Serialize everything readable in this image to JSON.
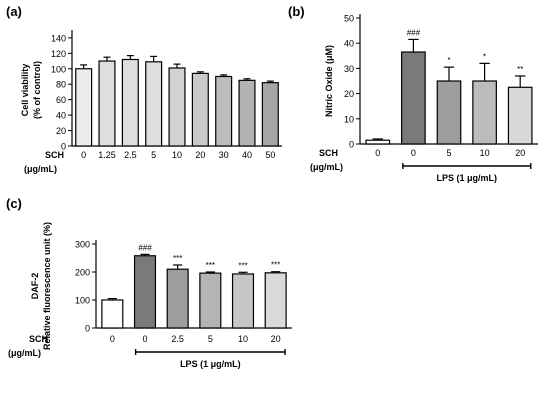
{
  "panel_labels": [
    "(a)",
    "(b)",
    "(c)"
  ],
  "chart_data": [
    {
      "type": "bar",
      "panel": "(a)",
      "ylabel": [
        "Cell viability",
        "(% of control)"
      ],
      "yticks": [
        0,
        20,
        40,
        60,
        80,
        100,
        120,
        140
      ],
      "ylim": [
        0,
        145
      ],
      "xrow_label": "SCH",
      "xunit_label": "(μg/mL)",
      "categories": [
        "0",
        "1.25",
        "2.5",
        "5",
        "10",
        "20",
        "30",
        "40",
        "50"
      ],
      "values": [
        100,
        110,
        112,
        109,
        101,
        94,
        90,
        85,
        82
      ],
      "errors": [
        5,
        5,
        5,
        7,
        5,
        2,
        2,
        2,
        2
      ],
      "fill_colors": [
        "#ececec",
        "#dedede",
        "#dedede",
        "#dedede",
        "#d2d2d2",
        "#c9c9c9",
        "#bdbdbd",
        "#b3b3b3",
        "#a6a6a6"
      ],
      "significance": [
        "",
        "",
        "",
        "",
        "",
        "",
        "",
        "",
        ""
      ],
      "bracket_label": "",
      "grid": false
    },
    {
      "type": "bar",
      "panel": "(b)",
      "ylabel": [
        "Nitric Oxide (μM)"
      ],
      "yticks": [
        0,
        10,
        20,
        30,
        40,
        50
      ],
      "ylim": [
        0,
        50
      ],
      "xrow_label": "SCH",
      "xunit_label": "(μg/mL)",
      "categories": [
        "0",
        "0",
        "5",
        "10",
        "20"
      ],
      "values": [
        1.5,
        36.5,
        25,
        25,
        22.5
      ],
      "errors": [
        0.5,
        5,
        5.5,
        7,
        4.5
      ],
      "fill_colors": [
        "#ffffff",
        "#7a7a7a",
        "#9e9e9e",
        "#bcbcbc",
        "#d8d8d8"
      ],
      "significance": [
        "",
        "###",
        "*",
        "*",
        "**"
      ],
      "bracket_label": "LPS (1 μg/mL)",
      "bracket_from": 1,
      "grid": false
    },
    {
      "type": "bar",
      "panel": "(c)",
      "ylabel": [
        "DAF-2",
        "Relative fluorescence unit (%)"
      ],
      "yticks": [
        0,
        100,
        200,
        300
      ],
      "ylim": [
        0,
        300
      ],
      "xrow_label": "SCH",
      "xunit_label": "(μg/mL)",
      "categories": [
        "0",
        "0",
        "2.5",
        "5",
        "10",
        "20"
      ],
      "values": [
        100,
        258,
        210,
        196,
        193,
        197
      ],
      "errors": [
        5,
        5,
        15,
        4,
        6,
        4
      ],
      "fill_colors": [
        "#ffffff",
        "#7a7a7a",
        "#9e9e9e",
        "#b4b4b4",
        "#c6c6c6",
        "#dadada"
      ],
      "significance": [
        "",
        "###",
        "***",
        "***",
        "***",
        "***"
      ],
      "bracket_label": "LPS (1 μg/mL)",
      "bracket_from": 1,
      "grid": false
    }
  ]
}
